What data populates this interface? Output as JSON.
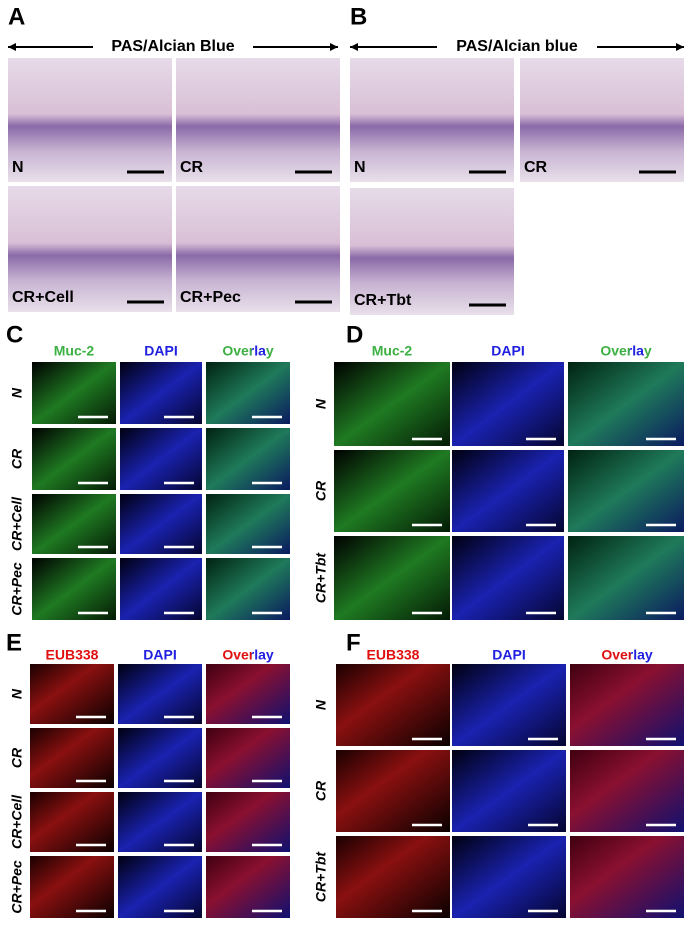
{
  "panels": [
    {
      "label": "A",
      "header": "PAS/Alcian Blue",
      "images": [
        "N",
        "CR",
        "CR+Cell",
        "CR+Pec"
      ]
    },
    {
      "label": "B",
      "header": "PAS/Alcian blue",
      "images": [
        "N",
        "CR",
        "CR+Tbt"
      ]
    }
  ],
  "grids": [
    {
      "label": "C",
      "columns": [
        "Muc-2",
        "DAPI",
        "Overlay"
      ],
      "rows": [
        "N",
        "CR",
        "CR+Cell",
        "CR+Pec"
      ]
    },
    {
      "label": "D",
      "columns": [
        "Muc-2",
        "DAPI",
        "Overlay"
      ],
      "rows": [
        "N",
        "CR",
        "CR+Tbt"
      ]
    },
    {
      "label": "E",
      "columns": [
        "EUB338",
        "DAPI",
        "Overlay"
      ],
      "rows": [
        "N",
        "CR",
        "CR+Cell",
        "CR+Pec"
      ]
    },
    {
      "label": "F",
      "columns": [
        "EUB338",
        "DAPI",
        "Overlay"
      ],
      "rows": [
        "N",
        "CR",
        "CR+Tbt"
      ]
    }
  ]
}
